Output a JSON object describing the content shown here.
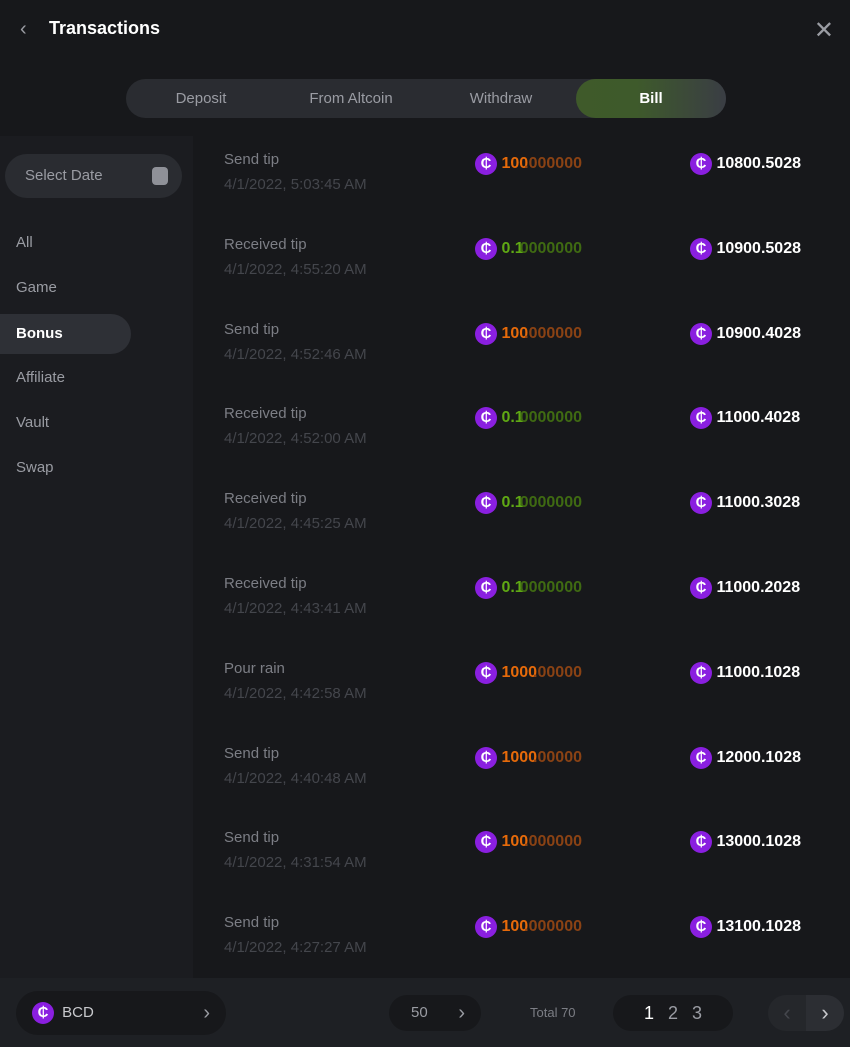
{
  "header": {
    "title": "Transactions",
    "back_icon": "chevron-left-icon",
    "close_icon": "close-icon"
  },
  "tabs": [
    {
      "label": "Deposit"
    },
    {
      "label": "From Altcoin"
    },
    {
      "label": "Withdraw"
    },
    {
      "label": "Bill",
      "active": true
    }
  ],
  "sidebar": {
    "date_placeholder": "Select Date",
    "categories": [
      {
        "label": "All"
      },
      {
        "label": "Game"
      },
      {
        "label": "Bonus",
        "active": true
      },
      {
        "label": "Affiliate"
      },
      {
        "label": "Vault"
      },
      {
        "label": "Swap"
      }
    ]
  },
  "colors": {
    "out_main": "#e66a0a",
    "out_frac": "#8a4214",
    "in_main": "#5fa814",
    "in_frac": "#3f6a12",
    "coin": "#8a1fe0"
  },
  "rows": [
    {
      "type": "Send tip",
      "date": "4/1/2022, 5:03:45 AM",
      "amt_main": "100",
      "amt_frac": ".000000",
      "dir": "out",
      "balance": "10800.5028"
    },
    {
      "type": "Received tip",
      "date": "4/1/2022, 4:55:20 AM",
      "amt_main": "0.1",
      "amt_frac": "0000000",
      "dir": "in",
      "balance": "10900.5028"
    },
    {
      "type": "Send tip",
      "date": "4/1/2022, 4:52:46 AM",
      "amt_main": "100",
      "amt_frac": ".000000",
      "dir": "out",
      "balance": "10900.4028"
    },
    {
      "type": "Received tip",
      "date": "4/1/2022, 4:52:00 AM",
      "amt_main": "0.1",
      "amt_frac": "0000000",
      "dir": "in",
      "balance": "11000.4028"
    },
    {
      "type": "Received tip",
      "date": "4/1/2022, 4:45:25 AM",
      "amt_main": "0.1",
      "amt_frac": "0000000",
      "dir": "in",
      "balance": "11000.3028"
    },
    {
      "type": "Received tip",
      "date": "4/1/2022, 4:43:41 AM",
      "amt_main": "0.1",
      "amt_frac": "0000000",
      "dir": "in",
      "balance": "11000.2028"
    },
    {
      "type": "Pour rain",
      "date": "4/1/2022, 4:42:58 AM",
      "amt_main": "1000",
      "amt_frac": ".00000",
      "dir": "out",
      "balance": "11000.1028"
    },
    {
      "type": "Send tip",
      "date": "4/1/2022, 4:40:48 AM",
      "amt_main": "1000",
      "amt_frac": ".00000",
      "dir": "out",
      "balance": "12000.1028"
    },
    {
      "type": "Send tip",
      "date": "4/1/2022, 4:31:54 AM",
      "amt_main": "100",
      "amt_frac": ".000000",
      "dir": "out",
      "balance": "13000.1028"
    },
    {
      "type": "Send tip",
      "date": "4/1/2022, 4:27:27 AM",
      "amt_main": "100",
      "amt_frac": ".000000",
      "dir": "out",
      "balance": "13100.1028"
    }
  ],
  "footer": {
    "currency": "BCD",
    "page_size": "50",
    "total": "Total 70",
    "pages": [
      "1",
      "2",
      "3"
    ],
    "current_page": "1"
  }
}
